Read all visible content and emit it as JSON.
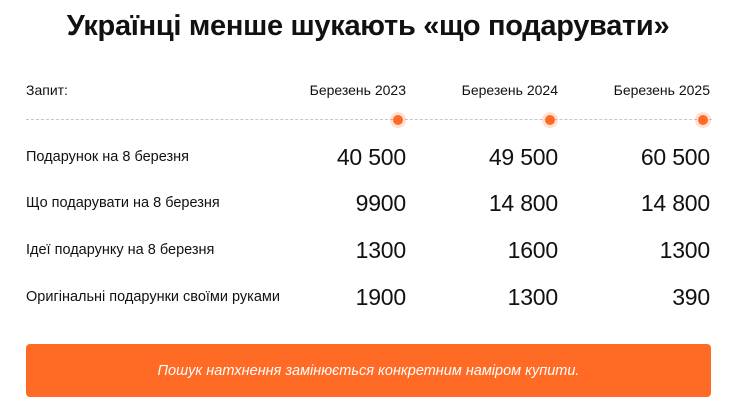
{
  "title": "Українці менше шукають «що подарувати»",
  "colors": {
    "accent": "#ff6a24",
    "text": "#111111",
    "divider": "#c7c7c7"
  },
  "chart_data": {
    "type": "table",
    "title": "Українці менше шукають «що подарувати»",
    "row_header_label": "Запит:",
    "columns": [
      "Березень 2023",
      "Березень 2024",
      "Березень 2025"
    ],
    "rows": [
      {
        "label": "Подарунок на 8 березня",
        "values": [
          "40 500",
          "49 500",
          "60 500"
        ]
      },
      {
        "label": "Що подарувати на 8 березня",
        "values": [
          "9900",
          "14 800",
          "14 800"
        ]
      },
      {
        "label": "Ідеї подарунку на 8 березня",
        "values": [
          "1300",
          "1600",
          "1300"
        ]
      },
      {
        "label": "Оригінальні подарунки своїми руками",
        "values": [
          "1900",
          "1300",
          "390"
        ]
      }
    ]
  },
  "banner": {
    "text": "Пошук натхнення замінюється конкретним наміром купити."
  }
}
